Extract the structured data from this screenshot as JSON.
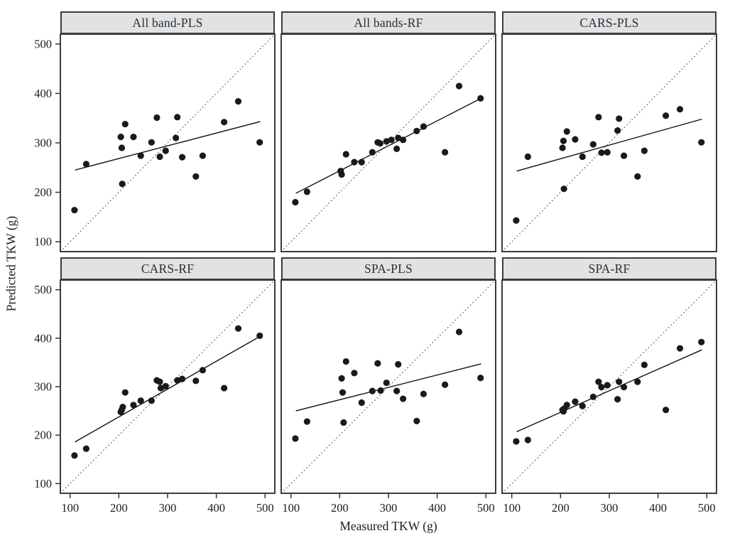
{
  "chart_data": {
    "type": "scatter",
    "layout": "2x3 lattice of panels, shared axes",
    "xlabel": "Measured TKW (g)",
    "ylabel": "Predicted TKW (g)",
    "xlim": [
      80,
      520
    ],
    "ylim": [
      80,
      520
    ],
    "x_ticks": [
      100,
      200,
      300,
      400,
      500
    ],
    "y_ticks": [
      100,
      200,
      300,
      400,
      500
    ],
    "grid": "off",
    "identity_line": {
      "style": "dotted",
      "from": 80,
      "to": 520,
      "meaning": "1:1 line"
    },
    "colors": {
      "point": "#1a1a1a",
      "fit_line": "#111111",
      "identity_line": "#4a4a4a",
      "panel_border": "#3c3c3c",
      "header_bg": "#e2e2e2",
      "tick_text": "#1c1c1c"
    },
    "panels": [
      {
        "title": "All band-PLS",
        "fit_line": {
          "x1": 110,
          "y1": 245,
          "x2": 490,
          "y2": 343
        },
        "points": [
          [
            109,
            164
          ],
          [
            133,
            257
          ],
          [
            204,
            312
          ],
          [
            206,
            290
          ],
          [
            207,
            217
          ],
          [
            213,
            338
          ],
          [
            230,
            312
          ],
          [
            245,
            274
          ],
          [
            267,
            301
          ],
          [
            278,
            351
          ],
          [
            284,
            272
          ],
          [
            296,
            284
          ],
          [
            317,
            310
          ],
          [
            320,
            352
          ],
          [
            330,
            271
          ],
          [
            358,
            232
          ],
          [
            372,
            274
          ],
          [
            416,
            342
          ],
          [
            445,
            384
          ],
          [
            489,
            301
          ]
        ]
      },
      {
        "title": "All bands-RF",
        "fit_line": {
          "x1": 110,
          "y1": 198,
          "x2": 490,
          "y2": 390
        },
        "points": [
          [
            109,
            180
          ],
          [
            133,
            201
          ],
          [
            202,
            243
          ],
          [
            204,
            236
          ],
          [
            213,
            277
          ],
          [
            230,
            261
          ],
          [
            245,
            261
          ],
          [
            267,
            281
          ],
          [
            278,
            301
          ],
          [
            283,
            299
          ],
          [
            296,
            303
          ],
          [
            306,
            306
          ],
          [
            317,
            288
          ],
          [
            320,
            310
          ],
          [
            330,
            306
          ],
          [
            358,
            324
          ],
          [
            372,
            333
          ],
          [
            416,
            281
          ],
          [
            445,
            415
          ],
          [
            489,
            390
          ]
        ]
      },
      {
        "title": "CARS-PLS",
        "fit_line": {
          "x1": 110,
          "y1": 243,
          "x2": 490,
          "y2": 348
        },
        "points": [
          [
            109,
            143
          ],
          [
            133,
            272
          ],
          [
            204,
            290
          ],
          [
            206,
            304
          ],
          [
            207,
            207
          ],
          [
            213,
            323
          ],
          [
            230,
            307
          ],
          [
            245,
            272
          ],
          [
            267,
            297
          ],
          [
            278,
            352
          ],
          [
            284,
            280
          ],
          [
            296,
            281
          ],
          [
            317,
            325
          ],
          [
            320,
            349
          ],
          [
            330,
            274
          ],
          [
            358,
            232
          ],
          [
            372,
            284
          ],
          [
            416,
            355
          ],
          [
            445,
            368
          ],
          [
            489,
            301
          ]
        ]
      },
      {
        "title": "CARS-RF",
        "fit_line": {
          "x1": 110,
          "y1": 186,
          "x2": 490,
          "y2": 404
        },
        "points": [
          [
            109,
            158
          ],
          [
            133,
            172
          ],
          [
            204,
            248
          ],
          [
            206,
            252
          ],
          [
            208,
            258
          ],
          [
            213,
            288
          ],
          [
            230,
            262
          ],
          [
            245,
            271
          ],
          [
            267,
            271
          ],
          [
            278,
            313
          ],
          [
            284,
            310
          ],
          [
            286,
            297
          ],
          [
            296,
            301
          ],
          [
            320,
            313
          ],
          [
            330,
            316
          ],
          [
            358,
            312
          ],
          [
            372,
            334
          ],
          [
            416,
            297
          ],
          [
            445,
            420
          ],
          [
            489,
            405
          ]
        ]
      },
      {
        "title": "SPA-PLS",
        "fit_line": {
          "x1": 110,
          "y1": 250,
          "x2": 490,
          "y2": 347
        },
        "points": [
          [
            109,
            193
          ],
          [
            133,
            228
          ],
          [
            204,
            317
          ],
          [
            206,
            288
          ],
          [
            208,
            226
          ],
          [
            213,
            352
          ],
          [
            230,
            328
          ],
          [
            245,
            267
          ],
          [
            267,
            291
          ],
          [
            278,
            348
          ],
          [
            284,
            292
          ],
          [
            296,
            308
          ],
          [
            317,
            291
          ],
          [
            320,
            346
          ],
          [
            330,
            275
          ],
          [
            358,
            229
          ],
          [
            372,
            285
          ],
          [
            416,
            304
          ],
          [
            445,
            413
          ],
          [
            489,
            318
          ]
        ]
      },
      {
        "title": "SPA-RF",
        "fit_line": {
          "x1": 110,
          "y1": 207,
          "x2": 490,
          "y2": 376
        },
        "points": [
          [
            109,
            187
          ],
          [
            133,
            190
          ],
          [
            204,
            252
          ],
          [
            206,
            249
          ],
          [
            208,
            255
          ],
          [
            213,
            262
          ],
          [
            230,
            269
          ],
          [
            245,
            260
          ],
          [
            267,
            279
          ],
          [
            278,
            310
          ],
          [
            284,
            299
          ],
          [
            296,
            303
          ],
          [
            317,
            274
          ],
          [
            320,
            310
          ],
          [
            330,
            299
          ],
          [
            358,
            310
          ],
          [
            372,
            345
          ],
          [
            416,
            252
          ],
          [
            445,
            379
          ],
          [
            489,
            392
          ]
        ]
      }
    ]
  }
}
